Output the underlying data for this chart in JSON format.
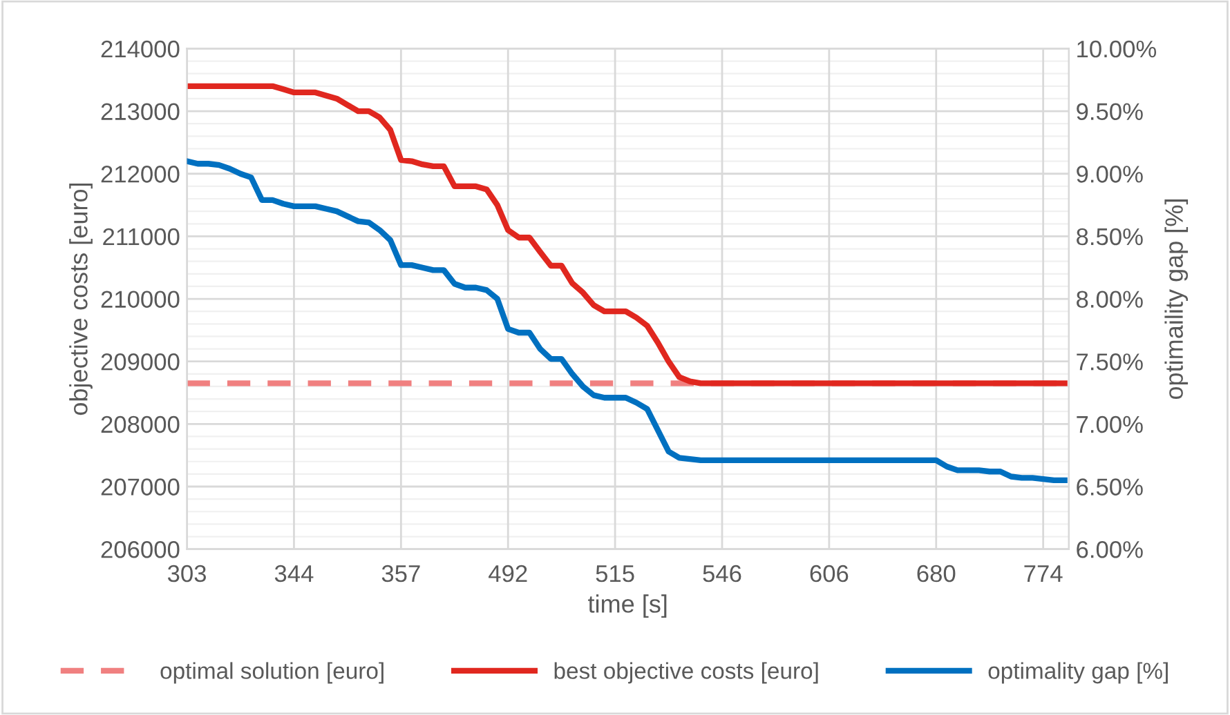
{
  "chart_data": {
    "type": "line",
    "xlabel": "time [s]",
    "ylabel": "objective costs [euro]",
    "y2label": "optimaility gap [%]",
    "categories": [
      "303",
      null,
      null,
      null,
      null,
      null,
      null,
      null,
      null,
      null,
      "344",
      null,
      null,
      null,
      null,
      null,
      null,
      null,
      null,
      null,
      "357",
      null,
      null,
      null,
      null,
      null,
      null,
      null,
      null,
      null,
      "492",
      null,
      null,
      null,
      null,
      null,
      null,
      null,
      null,
      null,
      "515",
      null,
      null,
      null,
      null,
      null,
      null,
      null,
      null,
      null,
      "546",
      null,
      null,
      null,
      null,
      null,
      null,
      null,
      null,
      null,
      "606",
      null,
      null,
      null,
      null,
      null,
      null,
      null,
      null,
      null,
      "680",
      null,
      null,
      null,
      null,
      null,
      null,
      null,
      null,
      null,
      "774",
      null,
      null
    ],
    "series": [
      {
        "name": "optimal solution [euro]",
        "color": "#f08080",
        "line_style": "dashed",
        "values": [
          208650,
          208650,
          208650,
          208650,
          208650,
          208650,
          208650,
          208650,
          208650,
          208650,
          208650,
          208650,
          208650,
          208650,
          208650,
          208650,
          208650,
          208650,
          208650,
          208650,
          208650,
          208650,
          208650,
          208650,
          208650,
          208650,
          208650,
          208650,
          208650,
          208650,
          208650,
          208650,
          208650,
          208650,
          208650,
          208650,
          208650,
          208650,
          208650,
          208650,
          208650,
          208650,
          208650,
          208650,
          208650,
          208650,
          208650,
          208650,
          208650,
          208650,
          208650,
          208650,
          208650,
          208650,
          208650,
          208650,
          208650,
          208650,
          208650,
          208650,
          208650,
          208650,
          208650,
          208650,
          208650,
          208650,
          208650,
          208650,
          208650,
          208650,
          208650,
          208650,
          208650,
          208650,
          208650,
          208650,
          208650,
          208650,
          208650,
          208650,
          208650,
          208650,
          208650
        ]
      },
      {
        "name": "best objective costs [euro]",
        "color": "#e0271f",
        "line_style": "solid",
        "values": [
          213400,
          213400,
          213400,
          213400,
          213400,
          213400,
          213400,
          213400,
          213400,
          213350,
          213300,
          213300,
          213300,
          213250,
          213200,
          213100,
          213000,
          213000,
          212900,
          212700,
          212220,
          212200,
          212150,
          212120,
          212120,
          211800,
          211800,
          211800,
          211750,
          211500,
          211100,
          210980,
          210980,
          210750,
          210530,
          210530,
          210250,
          210100,
          209900,
          209800,
          209800,
          209800,
          209700,
          209570,
          209300,
          209000,
          208750,
          208680,
          208650,
          208650,
          208650,
          208650,
          208650,
          208650,
          208650,
          208650,
          208650,
          208650,
          208650,
          208650,
          208650,
          208650,
          208650,
          208650,
          208650,
          208650,
          208650,
          208650,
          208650,
          208650,
          208650,
          208650,
          208650,
          208650,
          208650,
          208650,
          208650,
          208650,
          208650,
          208650,
          208650,
          208650,
          208650
        ]
      },
      {
        "name": "optimality gap [%]",
        "color": "#0070c0",
        "line_style": "solid",
        "axis": "y2",
        "values": [
          9.1,
          9.08,
          9.08,
          9.07,
          9.04,
          9.0,
          8.97,
          8.79,
          8.79,
          8.76,
          8.74,
          8.74,
          8.74,
          8.72,
          8.7,
          8.66,
          8.62,
          8.61,
          8.55,
          8.47,
          8.27,
          8.27,
          8.25,
          8.23,
          8.23,
          8.12,
          8.09,
          8.09,
          8.07,
          8.0,
          7.76,
          7.73,
          7.73,
          7.6,
          7.52,
          7.52,
          7.4,
          7.3,
          7.23,
          7.21,
          7.21,
          7.21,
          7.17,
          7.12,
          6.95,
          6.78,
          6.73,
          6.72,
          6.71,
          6.71,
          6.71,
          6.71,
          6.71,
          6.71,
          6.71,
          6.71,
          6.71,
          6.71,
          6.71,
          6.71,
          6.71,
          6.71,
          6.71,
          6.71,
          6.71,
          6.71,
          6.71,
          6.71,
          6.71,
          6.71,
          6.71,
          6.66,
          6.63,
          6.63,
          6.63,
          6.62,
          6.62,
          6.58,
          6.57,
          6.57,
          6.56,
          6.55,
          6.55
        ]
      }
    ],
    "ylim": [
      206000,
      214000
    ],
    "yticks": [
      206000,
      207000,
      208000,
      209000,
      210000,
      211000,
      212000,
      213000,
      214000
    ],
    "y2lim": [
      6,
      10
    ],
    "y2ticks": [
      {
        "value": 6,
        "label": "6.00%"
      },
      {
        "value": 6.5,
        "label": "6.50%"
      },
      {
        "value": 7,
        "label": "7.00%"
      },
      {
        "value": 7.5,
        "label": "7.50%"
      },
      {
        "value": 8,
        "label": "8.00%"
      },
      {
        "value": 8.5,
        "label": "8.50%"
      },
      {
        "value": 9,
        "label": "9.00%"
      },
      {
        "value": 9.5,
        "label": "9.50%"
      },
      {
        "value": 10,
        "label": "10.00%"
      }
    ],
    "grid": true,
    "legend": "bottom",
    "marker": "none"
  }
}
